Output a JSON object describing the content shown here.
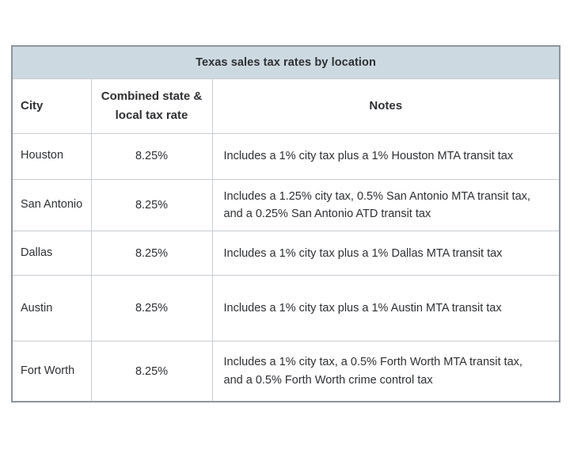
{
  "colors": {
    "title_bg": "#cdd9e1",
    "outer_border": "#8e959c",
    "inner_border": "#c7ccd1",
    "text_color": "#2e3033",
    "page_bg": "#ffffff"
  },
  "table": {
    "title": "Texas sales tax rates by location",
    "columns": {
      "city": "City",
      "rate": "Combined state & local tax rate",
      "notes": "Notes"
    },
    "rows": [
      {
        "city": "Houston",
        "rate": "8.25%",
        "note": "Includes a 1% city tax plus a 1% Houston MTA transit tax"
      },
      {
        "city": "San Antonio",
        "rate": "8.25%",
        "note": "Includes a 1.25% city tax, 0.5% San Antonio MTA transit tax, and a 0.25% San Antonio ATD transit tax"
      },
      {
        "city": "Dallas",
        "rate": "8.25%",
        "note": "Includes a 1% city tax plus a 1% Dallas MTA transit tax"
      },
      {
        "city": "Austin",
        "rate": "8.25%",
        "note": "Includes a 1% city tax plus a 1% Austin MTA transit tax"
      },
      {
        "city": "Fort Worth",
        "rate": "8.25%",
        "note": "Includes a 1% city tax, a 0.5% Forth Worth MTA transit tax, and a 0.5% Forth Worth crime control tax"
      }
    ]
  }
}
